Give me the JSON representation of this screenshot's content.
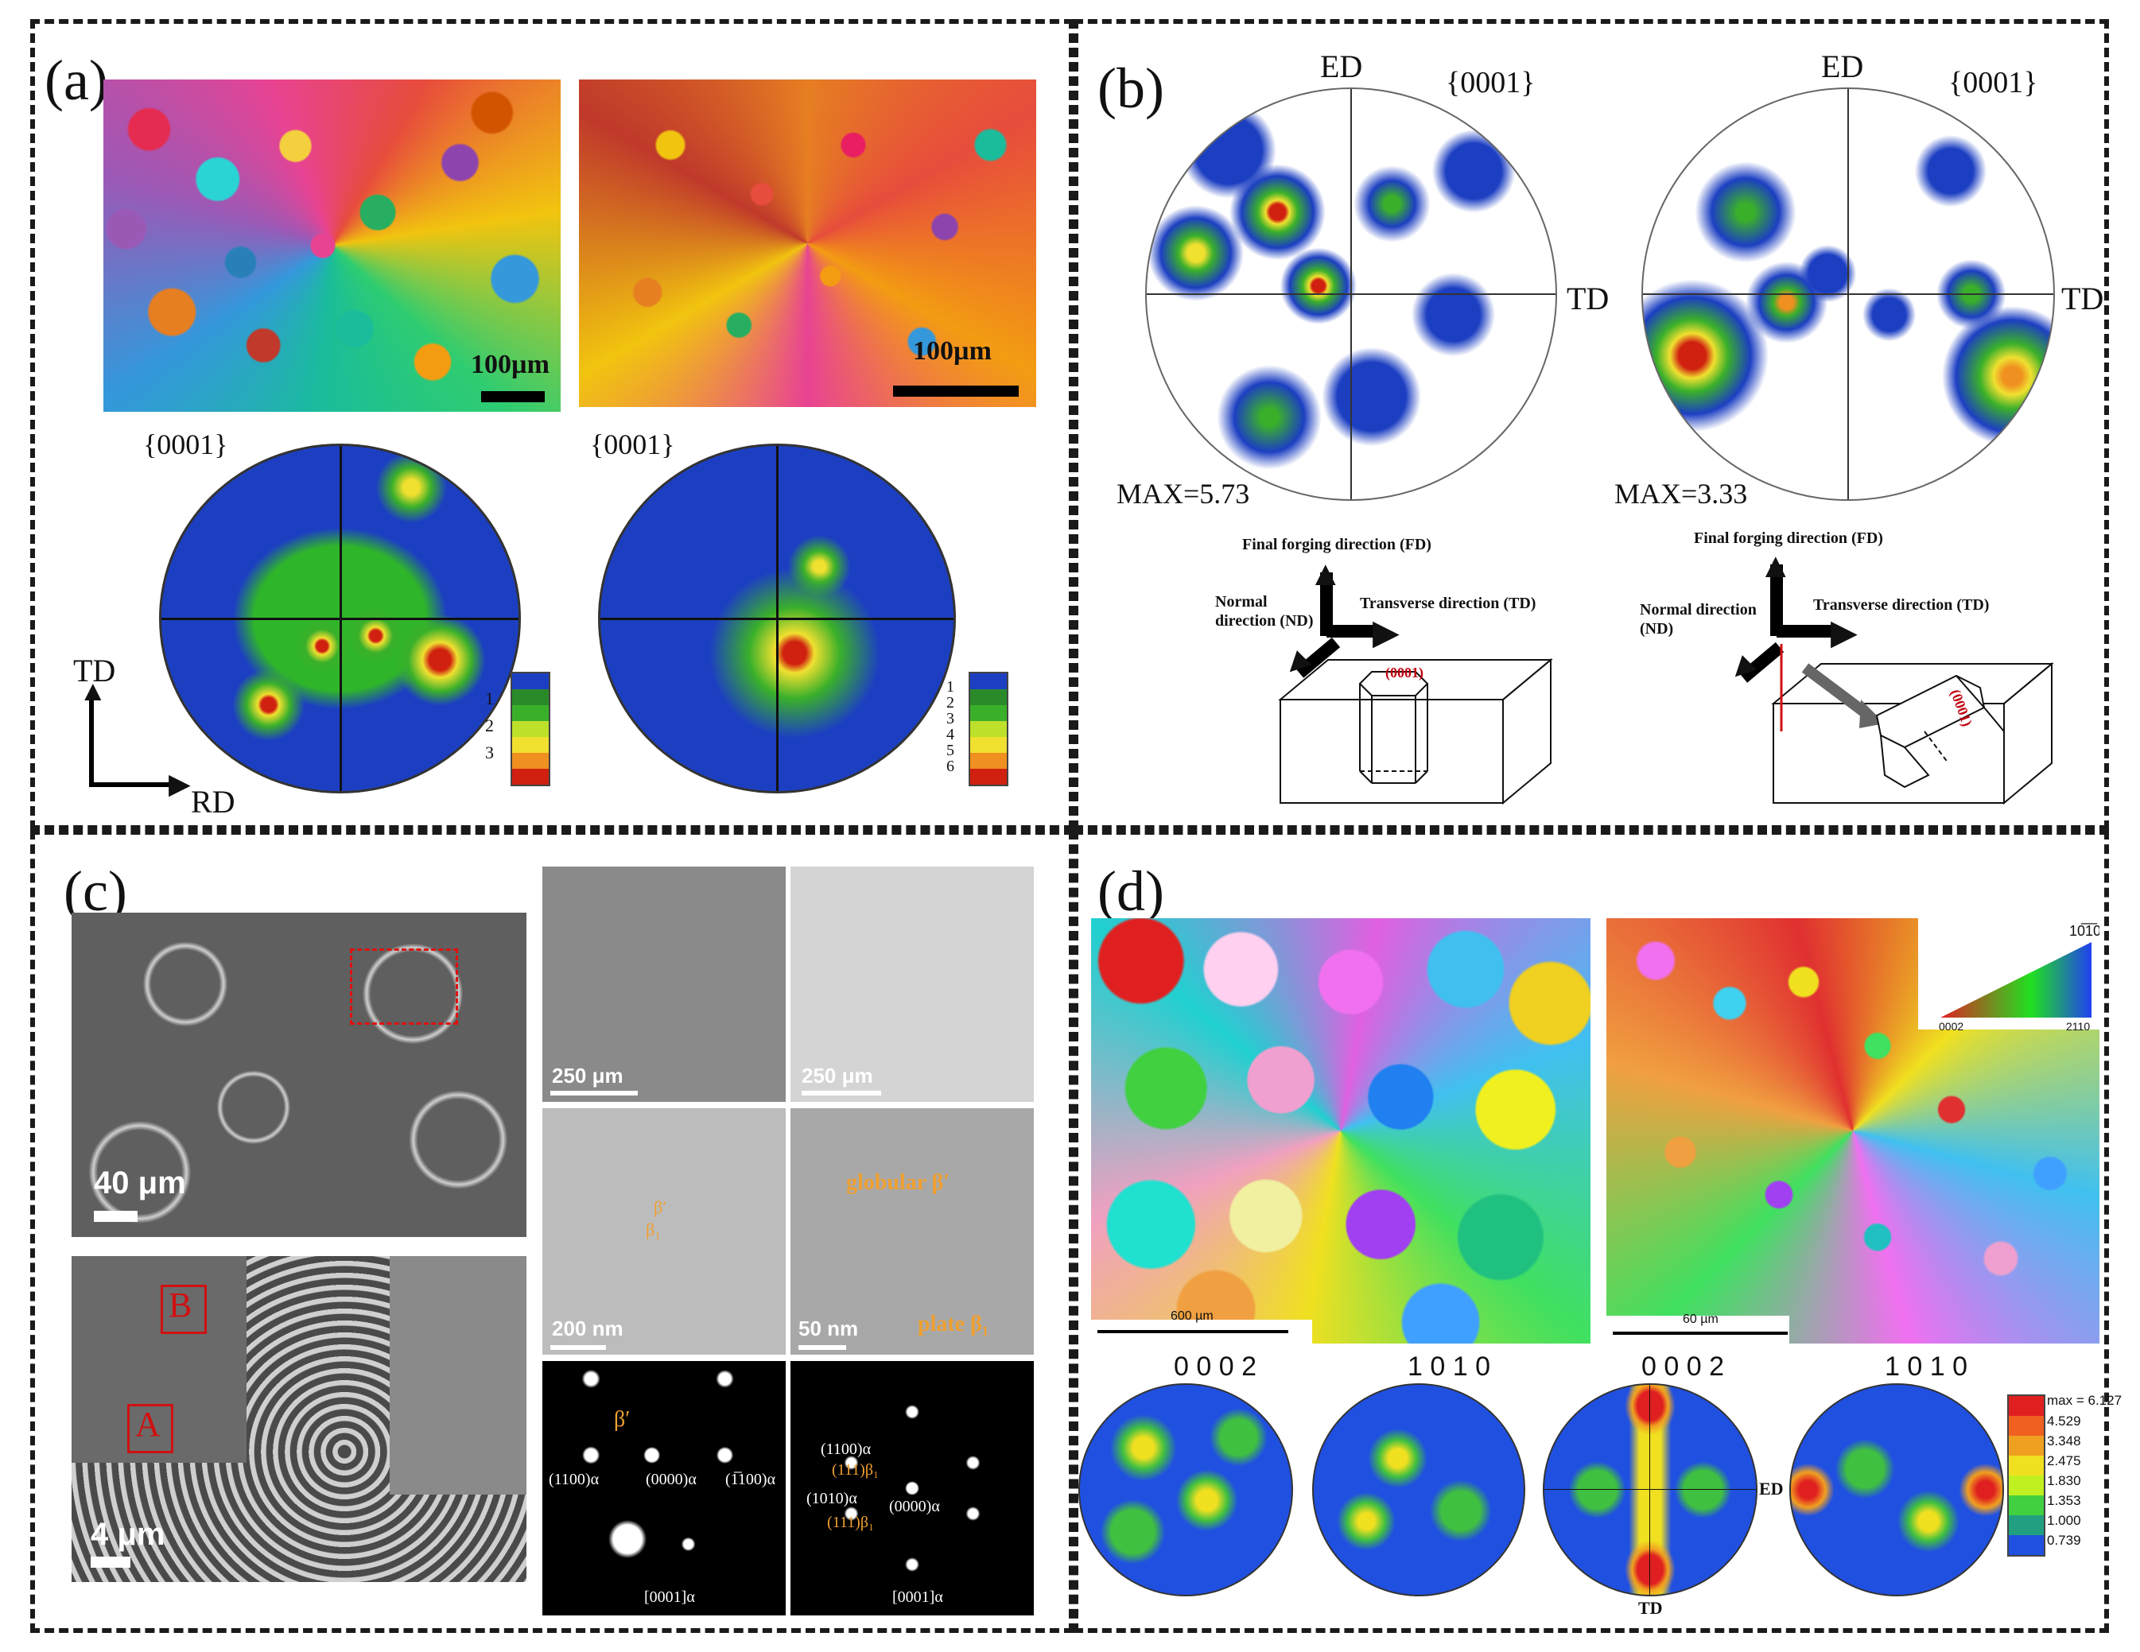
{
  "panels": {
    "a": {
      "label": "(a)",
      "scale_left": "100µm",
      "scale_right": "100µm",
      "pf_left_title": "{0001}",
      "pf_right_title": "{0001}",
      "axis_td": "TD",
      "axis_rd": "RD",
      "legend_left": [
        "1",
        "2",
        "3"
      ],
      "legend_right": [
        "1",
        "2",
        "3",
        "4",
        "5",
        "6"
      ]
    },
    "b": {
      "label": "(b)",
      "pf_left": {
        "top": "ED",
        "right": "TD",
        "title": "{0001}",
        "max": "MAX=5.73"
      },
      "pf_right": {
        "top": "ED",
        "right": "TD",
        "title": "{0001}",
        "max": "MAX=3.33"
      },
      "fd_label": "Final forging direction (FD)",
      "nd_label_l1": "Normal",
      "nd_label_l2": "direction (ND)",
      "td_label": "Transverse direction (TD)",
      "nd_label_right_l1": "Normal direction",
      "nd_label_right_l2": "(ND)",
      "crystal_label": "(0001)"
    },
    "c": {
      "label": "(c)",
      "scale_top": "40 μm",
      "scale_bottom": "4 μm",
      "marker_a": "A",
      "marker_b": "B",
      "tem_scales": [
        "250 μm",
        "250 μm",
        "200 nm",
        "50 nm"
      ],
      "globular": "globular β′",
      "plate": "plate β₁",
      "beta_prime": "β′",
      "beta1": "β₁",
      "saed_left": {
        "beta": "β′",
        "s1": "(1̅0)α",
        "s1full": "(1100)α",
        "s2": "(0000)α",
        "s3": "(1̅100)α",
        "zone": "[0001]α"
      },
      "saed_right": {
        "s1": "(1̅0)α",
        "s1full": "(1100)α",
        "s2": "(111)β₁",
        "s3": "(1010)α",
        "s4": "(0000)α",
        "s5": "(111)β₁",
        "zone": "[0001]α"
      }
    },
    "d": {
      "label": "(d)",
      "scale_left": "600 µm",
      "scale_right": "60 µm",
      "ipf_top": "10̅1̅0",
      "ipf_top_plain": "1010",
      "ipf_left": "0002",
      "ipf_right": "2110",
      "pf_titles": [
        "0 0 0 2",
        "1 0 1 0",
        "0 0 0 2",
        "1 0 1 0"
      ],
      "ed": "ED",
      "td": "TD",
      "legend": [
        "max = 6.127",
        "4.529",
        "3.348",
        "2.475",
        "1.830",
        "1.353",
        "1.000",
        "0.739"
      ]
    }
  },
  "colors": {
    "pf_low": "#1c3fc2",
    "pf_mid": "#2fb52a",
    "pf_high": "#e8e020",
    "pf_peak": "#d02010",
    "annotation_orange": "#f0a030",
    "marker_red": "#d01010"
  }
}
